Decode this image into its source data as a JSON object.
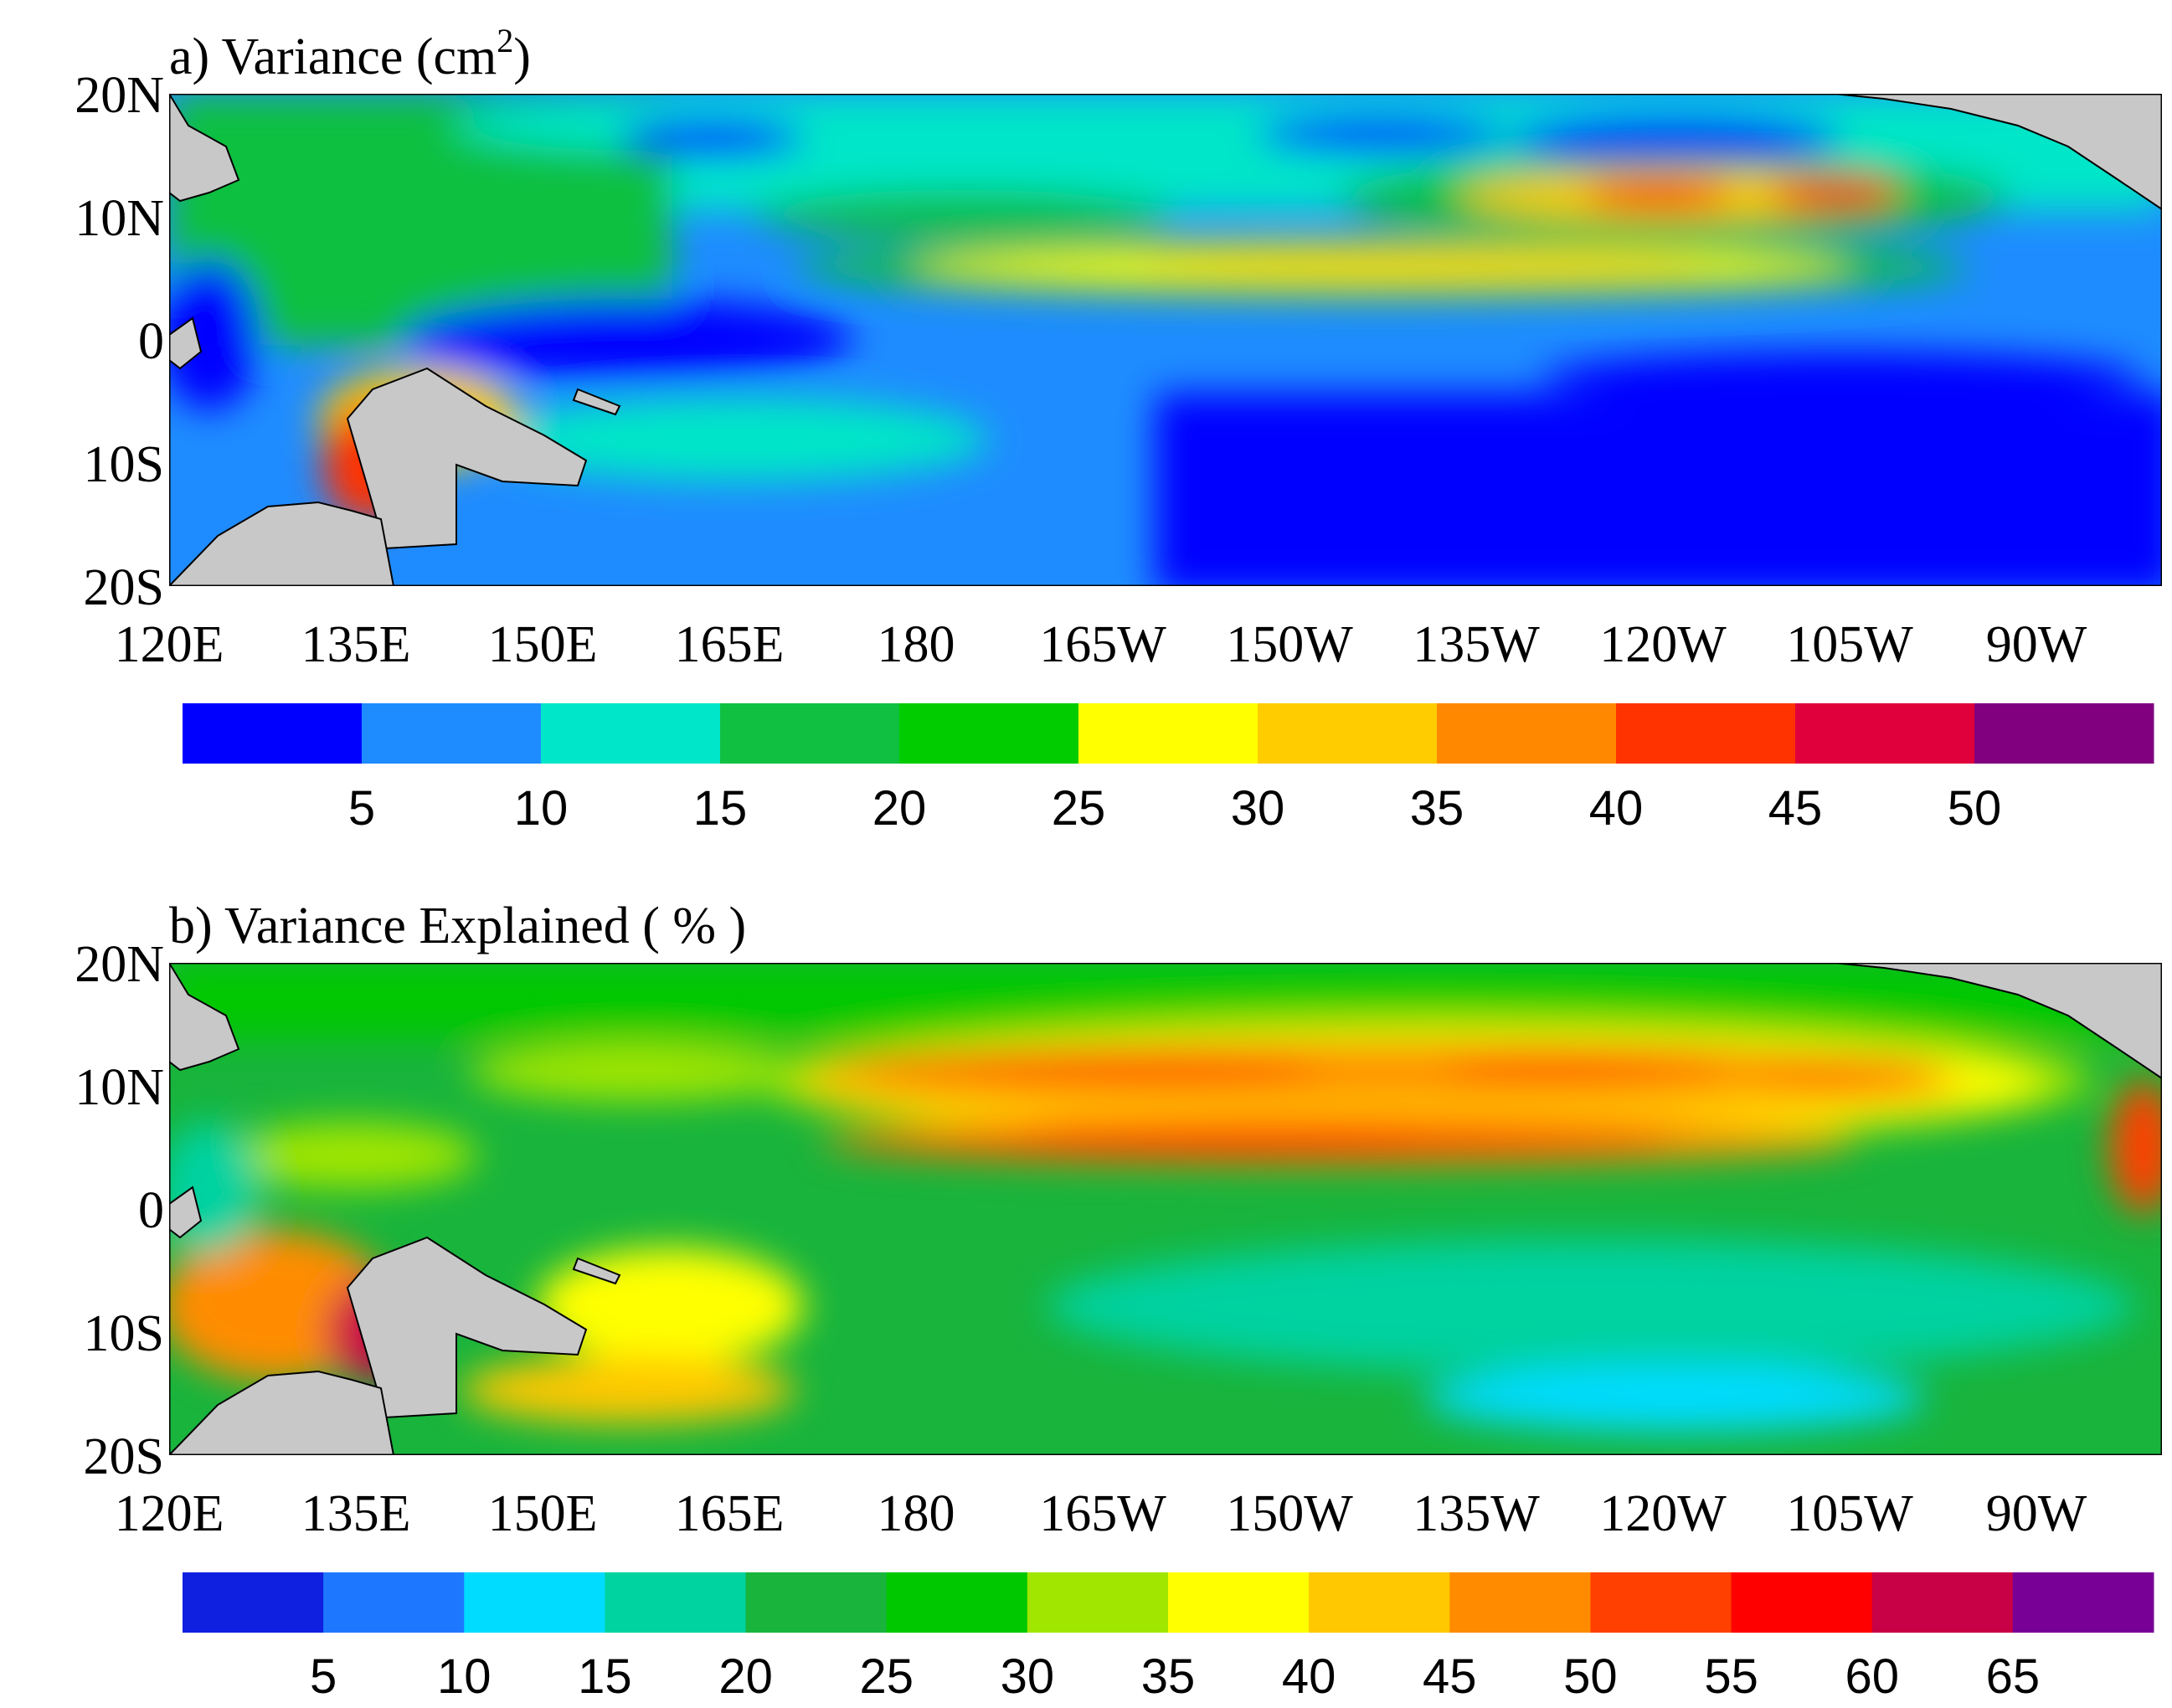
{
  "panels": [
    {
      "id": "a",
      "title": "a) Variance  (cm",
      "title_sup": "2",
      "title_close": ")",
      "lat_labels": [
        "20N",
        "10N",
        "0",
        "10S",
        "20S"
      ],
      "lon_labels": [
        "120E",
        "135E",
        "150E",
        "165E",
        "180",
        "165W",
        "150W",
        "135W",
        "120W",
        "105W",
        "90W"
      ],
      "colorbar": {
        "colors": [
          "#0000ff",
          "#1e8cff",
          "#00e6c8",
          "#10c040",
          "#00cc00",
          "#ffff00",
          "#ffcc00",
          "#ff8800",
          "#ff3300",
          "#e0003c",
          "#800080"
        ],
        "tick_labels": [
          "5",
          "10",
          "15",
          "20",
          "25",
          "30",
          "35",
          "40",
          "45",
          "50"
        ]
      }
    },
    {
      "id": "b",
      "title": "b) Variance Explained ( % )",
      "lat_labels": [
        "20N",
        "10N",
        "0",
        "10S",
        "20S"
      ],
      "lon_labels": [
        "120E",
        "135E",
        "150E",
        "165E",
        "180",
        "165W",
        "150W",
        "135W",
        "120W",
        "105W",
        "90W"
      ],
      "colorbar": {
        "colors": [
          "#1020e0",
          "#1e78ff",
          "#00dcff",
          "#00d2a0",
          "#18b43c",
          "#00c800",
          "#a0e600",
          "#ffff00",
          "#ffc800",
          "#ff8c00",
          "#ff4000",
          "#ff0000",
          "#c80046",
          "#780096"
        ],
        "tick_labels": [
          "5",
          "10",
          "15",
          "20",
          "25",
          "30",
          "35",
          "40",
          "45",
          "50",
          "55",
          "60",
          "65"
        ]
      }
    }
  ]
}
